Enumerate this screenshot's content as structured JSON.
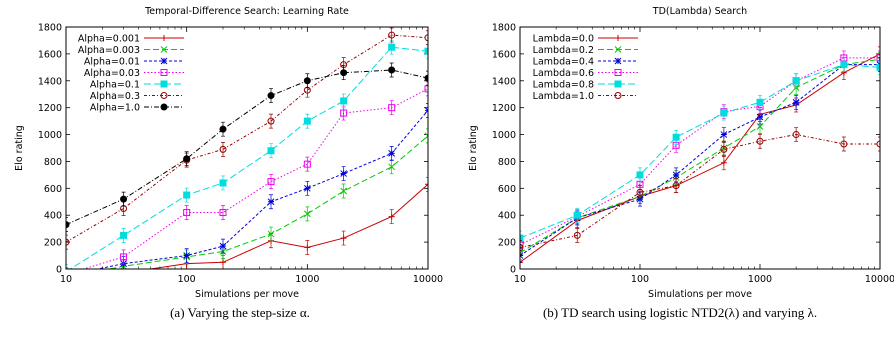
{
  "captions": [
    {
      "label": "(a)",
      "text": "Varying the step-size α."
    },
    {
      "label": "(b)",
      "text": "TD search using logistic NTD2(λ) and varying λ."
    }
  ],
  "chart_data": [
    {
      "type": "line",
      "title": "Temporal-Difference Search: Learning Rate",
      "xlabel": "Simulations per move",
      "ylabel": "Elo rating",
      "xscale": "log",
      "xlim": [
        10,
        10000
      ],
      "ylim": [
        0,
        1800
      ],
      "xticks": [
        10,
        100,
        1000,
        10000
      ],
      "yticks": [
        0,
        200,
        400,
        600,
        800,
        1000,
        1200,
        1400,
        1600,
        1800
      ],
      "legend_position": "top-left",
      "x": [
        10,
        30,
        100,
        200,
        500,
        1000,
        2000,
        5000,
        10000
      ],
      "series": [
        {
          "name": "Alpha=0.001",
          "color": "#cc0000",
          "marker": "plus",
          "values": [
            -80,
            -30,
            40,
            50,
            210,
            160,
            230,
            390,
            630
          ]
        },
        {
          "name": "Alpha=0.003",
          "color": "#00cc00",
          "marker": "x",
          "values": [
            -60,
            20,
            90,
            130,
            260,
            410,
            580,
            760,
            990
          ]
        },
        {
          "name": "Alpha=0.01",
          "color": "#0000dd",
          "marker": "star",
          "values": [
            -50,
            40,
            100,
            170,
            500,
            600,
            710,
            860,
            1180
          ]
        },
        {
          "name": "Alpha=0.03",
          "color": "#ee00ee",
          "marker": "square",
          "values": [
            -40,
            90,
            420,
            420,
            650,
            780,
            1160,
            1200,
            1340
          ]
        },
        {
          "name": "Alpha=0.1",
          "color": "#00dddd",
          "marker": "filled-square",
          "values": [
            -20,
            250,
            550,
            640,
            880,
            1100,
            1250,
            1650,
            1620
          ]
        },
        {
          "name": "Alpha=0.3",
          "color": "#990000",
          "marker": "circle",
          "values": [
            200,
            450,
            810,
            890,
            1100,
            1330,
            1520,
            1740,
            1720
          ]
        },
        {
          "name": "Alpha=1.0",
          "color": "#000000",
          "marker": "filled-circle",
          "values": [
            330,
            520,
            820,
            1040,
            1290,
            1400,
            1460,
            1480,
            1420
          ]
        }
      ]
    },
    {
      "type": "line",
      "title": "TD(Lambda) Search",
      "xlabel": "Simulations per move",
      "ylabel": "Elo rating",
      "xscale": "log",
      "xlim": [
        10,
        10000
      ],
      "ylim": [
        0,
        1800
      ],
      "xticks": [
        10,
        100,
        1000,
        10000
      ],
      "yticks": [
        0,
        200,
        400,
        600,
        800,
        1000,
        1200,
        1400,
        1600,
        1800
      ],
      "legend_position": "top-left",
      "x": [
        10,
        30,
        100,
        200,
        500,
        1000,
        2000,
        5000,
        10000
      ],
      "series": [
        {
          "name": "Lambda=0.0",
          "color": "#cc0000",
          "marker": "plus",
          "values": [
            50,
            360,
            540,
            620,
            790,
            1150,
            1220,
            1460,
            1600
          ]
        },
        {
          "name": "Lambda=0.2",
          "color": "#00cc00",
          "marker": "x",
          "values": [
            120,
            380,
            540,
            680,
            900,
            1060,
            1350,
            1520,
            1560
          ]
        },
        {
          "name": "Lambda=0.4",
          "color": "#0000dd",
          "marker": "star",
          "values": [
            100,
            380,
            520,
            700,
            1000,
            1130,
            1240,
            1520,
            1520
          ]
        },
        {
          "name": "Lambda=0.6",
          "color": "#ee00ee",
          "marker": "square",
          "values": [
            180,
            390,
            630,
            920,
            1170,
            1210,
            1400,
            1570,
            1570
          ]
        },
        {
          "name": "Lambda=0.8",
          "color": "#00dddd",
          "marker": "filled-square",
          "values": [
            230,
            400,
            700,
            980,
            1160,
            1240,
            1400,
            1520,
            1500
          ]
        },
        {
          "name": "Lambda=1.0",
          "color": "#990000",
          "marker": "circle",
          "values": [
            160,
            250,
            570,
            620,
            890,
            950,
            1000,
            930,
            930
          ]
        }
      ]
    }
  ]
}
